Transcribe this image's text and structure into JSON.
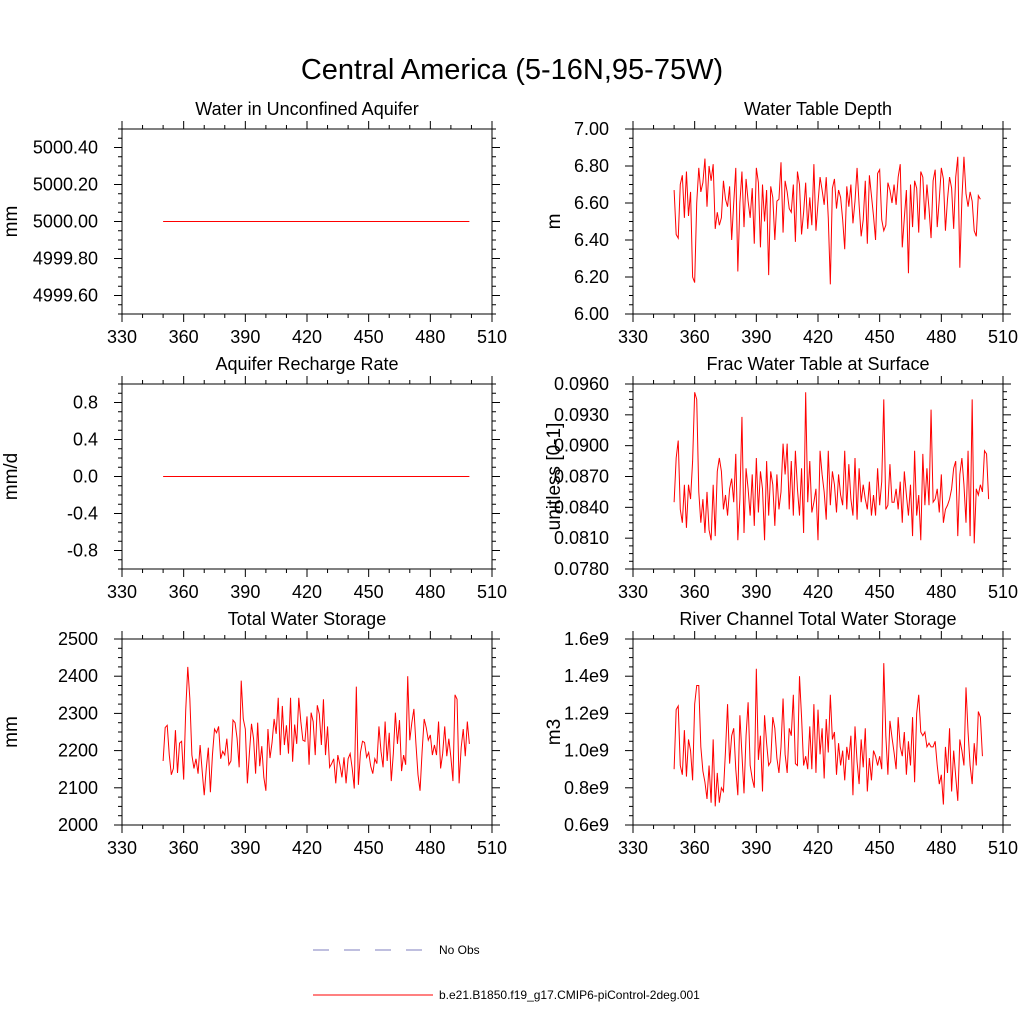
{
  "figure": {
    "title": "Central America (5-16N,95-75W)"
  },
  "legend": {
    "entries": [
      {
        "label": "No Obs",
        "color": "#7f7fbf",
        "dash": true
      },
      {
        "label": "b.e21.B1850.f19_g17.CMIP6-piControl-2deg.001",
        "color": "#ff0000",
        "dash": false
      }
    ]
  },
  "chart_data": [
    {
      "type": "line",
      "title": "Water in Unconfined Aquifer",
      "xlabel": "",
      "ylabel": "mm",
      "xlim": [
        330,
        510
      ],
      "xticks": [
        "330",
        "360",
        "390",
        "420",
        "450",
        "480",
        "510"
      ],
      "ylim": [
        4999.5,
        5000.5
      ],
      "yticks": [
        "4999.60",
        "4999.80",
        "5000.00",
        "5000.20",
        "5000.40"
      ],
      "ytick_values": [
        4999.6,
        4999.8,
        5000.0,
        5000.2,
        5000.4
      ],
      "series": [
        {
          "name": "b.e21.B1850.f19_g17.CMIP6-piControl-2deg.001",
          "color": "#ff0000",
          "x_start": 350,
          "x_end": 499,
          "constant": 5000.0
        }
      ]
    },
    {
      "type": "line",
      "title": "Water Table Depth",
      "xlabel": "",
      "ylabel": "m",
      "xlim": [
        330,
        510
      ],
      "xticks": [
        "330",
        "360",
        "390",
        "420",
        "450",
        "480",
        "510"
      ],
      "ylim": [
        6.0,
        7.0
      ],
      "yticks": [
        "6.00",
        "6.20",
        "6.40",
        "6.60",
        "6.80",
        "7.00"
      ],
      "ytick_values": [
        6.0,
        6.2,
        6.4,
        6.6,
        6.8,
        7.0
      ],
      "series": [
        {
          "name": "b.e21.B1850.f19_g17.CMIP6-piControl-2deg.001",
          "color": "#ff0000",
          "x_start": 350,
          "values": [
            6.67,
            6.43,
            6.41,
            6.7,
            6.75,
            6.52,
            6.77,
            6.53,
            6.66,
            6.2,
            6.17,
            6.6,
            6.79,
            6.66,
            6.71,
            6.84,
            6.58,
            6.8,
            6.72,
            6.81,
            6.46,
            6.55,
            6.48,
            6.52,
            6.72,
            6.62,
            6.58,
            6.69,
            6.4,
            6.6,
            6.79,
            6.23,
            6.6,
            6.77,
            6.47,
            6.73,
            6.61,
            6.52,
            6.68,
            6.38,
            6.79,
            6.71,
            6.36,
            6.7,
            6.5,
            6.67,
            6.21,
            6.69,
            6.63,
            6.4,
            6.61,
            6.62,
            6.82,
            6.44,
            6.72,
            6.66,
            6.57,
            6.55,
            6.7,
            6.39,
            6.77,
            6.7,
            6.43,
            6.55,
            6.71,
            6.46,
            6.63,
            6.48,
            6.81,
            6.45,
            6.6,
            6.74,
            6.67,
            6.59,
            6.74,
            6.52,
            6.16,
            6.68,
            6.73,
            6.57,
            6.67,
            6.63,
            6.51,
            6.35,
            6.69,
            6.58,
            6.7,
            6.49,
            6.61,
            6.79,
            6.59,
            6.42,
            6.51,
            6.72,
            6.38,
            6.75,
            6.64,
            6.53,
            6.4,
            6.76,
            6.78,
            6.51,
            6.45,
            6.48,
            6.71,
            6.67,
            6.6,
            6.7,
            6.59,
            6.74,
            6.81,
            6.36,
            6.52,
            6.67,
            6.22,
            6.7,
            6.47,
            6.72,
            6.68,
            6.44,
            6.77,
            6.74,
            6.51,
            6.7,
            6.57,
            6.41,
            6.72,
            6.78,
            6.47,
            6.62,
            6.79,
            6.73,
            6.45,
            6.62,
            6.74,
            6.68,
            6.46,
            6.74,
            6.85,
            6.25,
            6.62,
            6.85,
            6.65,
            6.58,
            6.66,
            6.61,
            6.45,
            6.42,
            6.64,
            6.62
          ]
        }
      ]
    },
    {
      "type": "line",
      "title": "Aquifer Recharge Rate",
      "xlabel": "",
      "ylabel": "mm/d",
      "xlim": [
        330,
        510
      ],
      "xticks": [
        "330",
        "360",
        "390",
        "420",
        "450",
        "480",
        "510"
      ],
      "ylim": [
        -1.0,
        1.0
      ],
      "yticks": [
        "-0.8",
        "-0.4",
        "0.0",
        "0.4",
        "0.8"
      ],
      "ytick_values": [
        -0.8,
        -0.4,
        0.0,
        0.4,
        0.8
      ],
      "series": [
        {
          "name": "b.e21.B1850.f19_g17.CMIP6-piControl-2deg.001",
          "color": "#ff0000",
          "x_start": 350,
          "x_end": 499,
          "constant": 0.0
        }
      ]
    },
    {
      "type": "line",
      "title": "Frac Water Table at Surface",
      "xlabel": "",
      "ylabel": "unitless [0-1]",
      "xlim": [
        330,
        510
      ],
      "xticks": [
        "330",
        "360",
        "390",
        "420",
        "450",
        "480",
        "510"
      ],
      "ylim": [
        0.078,
        0.096
      ],
      "yticks": [
        "0.0780",
        "0.0810",
        "0.0840",
        "0.0870",
        "0.0900",
        "0.0930",
        "0.0960"
      ],
      "ytick_values": [
        0.078,
        0.081,
        0.084,
        0.087,
        0.09,
        0.093,
        0.096
      ],
      "series": [
        {
          "name": "b.e21.B1850.f19_g17.CMIP6-piControl-2deg.001",
          "color": "#ff0000",
          "x_start": 350,
          "values": [
            0.0845,
            0.0888,
            0.0905,
            0.0838,
            0.0825,
            0.0862,
            0.082,
            0.0862,
            0.0848,
            0.0885,
            0.0952,
            0.0945,
            0.0855,
            0.0825,
            0.0848,
            0.0815,
            0.0855,
            0.0818,
            0.0808,
            0.0862,
            0.0812,
            0.0875,
            0.0888,
            0.0875,
            0.0838,
            0.0852,
            0.0832,
            0.0858,
            0.0868,
            0.0845,
            0.0892,
            0.0808,
            0.0848,
            0.0928,
            0.0815,
            0.0878,
            0.0858,
            0.0832,
            0.0872,
            0.0822,
            0.0888,
            0.0835,
            0.0875,
            0.0858,
            0.0808,
            0.0885,
            0.0832,
            0.0875,
            0.0862,
            0.0822,
            0.0872,
            0.0838,
            0.0855,
            0.0902,
            0.0872,
            0.0902,
            0.0838,
            0.0885,
            0.0832,
            0.0895,
            0.0858,
            0.0832,
            0.0878,
            0.0815,
            0.0952,
            0.0845,
            0.0885,
            0.0835,
            0.0845,
            0.0858,
            0.0808,
            0.0895,
            0.0872,
            0.0855,
            0.0828,
            0.0895,
            0.0842,
            0.0875,
            0.0862,
            0.0835,
            0.0872,
            0.0852,
            0.0842,
            0.0895,
            0.0838,
            0.0882,
            0.0848,
            0.0832,
            0.0888,
            0.0828,
            0.0878,
            0.0845,
            0.0862,
            0.0848,
            0.0838,
            0.0865,
            0.0832,
            0.0852,
            0.0832,
            0.0878,
            0.0842,
            0.0865,
            0.0945,
            0.0838,
            0.0842,
            0.0882,
            0.0845,
            0.0845,
            0.0858,
            0.0838,
            0.0865,
            0.0825,
            0.0875,
            0.0852,
            0.0832,
            0.0862,
            0.0812,
            0.0895,
            0.0832,
            0.0852,
            0.0808,
            0.0892,
            0.0842,
            0.0878,
            0.0842,
            0.0935,
            0.0845,
            0.0848,
            0.0858,
            0.0835,
            0.0872,
            0.0825,
            0.0838,
            0.0842,
            0.0848,
            0.0858,
            0.0878,
            0.0885,
            0.0812,
            0.0872,
            0.0888,
            0.0862,
            0.0825,
            0.0895,
            0.0812,
            0.0945,
            0.0805,
            0.0858,
            0.0852,
            0.0862,
            0.0855,
            0.0895,
            0.0892,
            0.0848
          ]
        }
      ]
    },
    {
      "type": "line",
      "title": "Total Water Storage",
      "xlabel": "",
      "ylabel": "mm",
      "xlim": [
        330,
        510
      ],
      "xticks": [
        "330",
        "360",
        "390",
        "420",
        "450",
        "480",
        "510"
      ],
      "ylim": [
        2000,
        2500
      ],
      "yticks": [
        "2000",
        "2100",
        "2200",
        "2300",
        "2400",
        "2500"
      ],
      "ytick_values": [
        2000,
        2100,
        2200,
        2300,
        2400,
        2500
      ],
      "series": [
        {
          "name": "b.e21.B1850.f19_g17.CMIP6-piControl-2deg.001",
          "color": "#ff0000",
          "x_start": 350,
          "values": [
            2172,
            2262,
            2268,
            2188,
            2135,
            2152,
            2255,
            2140,
            2220,
            2225,
            2122,
            2308,
            2425,
            2340,
            2188,
            2152,
            2178,
            2138,
            2215,
            2145,
            2080,
            2152,
            2208,
            2088,
            2188,
            2258,
            2248,
            2265,
            2178,
            2198,
            2188,
            2232,
            2162,
            2172,
            2282,
            2275,
            2232,
            2155,
            2388,
            2285,
            2258,
            2112,
            2195,
            2272,
            2232,
            2138,
            2275,
            2158,
            2212,
            2128,
            2092,
            2258,
            2180,
            2222,
            2285,
            2245,
            2342,
            2188,
            2320,
            2215,
            2268,
            2192,
            2342,
            2170,
            2270,
            2218,
            2342,
            2278,
            2228,
            2225,
            2292,
            2162,
            2302,
            2278,
            2188,
            2322,
            2298,
            2215,
            2338,
            2188,
            2265,
            2155,
            2165,
            2178,
            2112,
            2188,
            2162,
            2128,
            2182,
            2112,
            2178,
            2192,
            2152,
            2098,
            2372,
            2108,
            2195,
            2225,
            2222,
            2182,
            2195,
            2158,
            2138,
            2178,
            2165,
            2265,
            2198,
            2155,
            2278,
            2172,
            2248,
            2118,
            2192,
            2302,
            2218,
            2282,
            2145,
            2188,
            2162,
            2400,
            2228,
            2275,
            2312,
            2218,
            2135,
            2092,
            2198,
            2285,
            2262,
            2228,
            2242,
            2188,
            2215,
            2188,
            2278,
            2152,
            2192,
            2265,
            2185,
            2232,
            2182,
            2118,
            2350,
            2338,
            2112,
            2208,
            2258,
            2185,
            2278,
            2218
          ]
        }
      ]
    },
    {
      "type": "line",
      "title": "River Channel Total Water Storage",
      "xlabel": "",
      "ylabel": "m3",
      "xlim": [
        330,
        510
      ],
      "xticks": [
        "330",
        "360",
        "390",
        "420",
        "450",
        "480",
        "510"
      ],
      "ylim": [
        600000000.0,
        1600000000.0
      ],
      "yticks": [
        "0.6e9",
        "0.8e9",
        "1.0e9",
        "1.2e9",
        "1.4e9",
        "1.6e9"
      ],
      "ytick_values": [
        600000000.0,
        800000000.0,
        1000000000.0,
        1200000000.0,
        1400000000.0,
        1600000000.0
      ],
      "series": [
        {
          "name": "b.e21.B1850.f19_g17.CMIP6-piControl-2deg.001",
          "color": "#ff0000",
          "x_start": 350,
          "values": [
            900000000.0,
            1220000000.0,
            1240000000.0,
            920000000.0,
            870000000.0,
            1110000000.0,
            860000000.0,
            1060000000.0,
            1000000000.0,
            840000000.0,
            1250000000.0,
            1350000000.0,
            1350000000.0,
            1020000000.0,
            890000000.0,
            830000000.0,
            740000000.0,
            920000000.0,
            720000000.0,
            1060000000.0,
            700000000.0,
            880000000.0,
            720000000.0,
            800000000.0,
            780000000.0,
            1000000000.0,
            1250000000.0,
            930000000.0,
            1080000000.0,
            1120000000.0,
            900000000.0,
            760000000.0,
            1190000000.0,
            980000000.0,
            770000000.0,
            1080000000.0,
            1260000000.0,
            920000000.0,
            850000000.0,
            800000000.0,
            1440000000.0,
            950000000.0,
            1080000000.0,
            780000000.0,
            1190000000.0,
            1040000000.0,
            920000000.0,
            940000000.0,
            1180000000.0,
            1120000000.0,
            960000000.0,
            880000000.0,
            1020000000.0,
            1280000000.0,
            980000000.0,
            880000000.0,
            1120000000.0,
            1080000000.0,
            1300000000.0,
            930000000.0,
            920000000.0,
            1400000000.0,
            1180000000.0,
            920000000.0,
            970000000.0,
            900000000.0,
            1130000000.0,
            900000000.0,
            1250000000.0,
            880000000.0,
            1220000000.0,
            980000000.0,
            1120000000.0,
            850000000.0,
            1170000000.0,
            990000000.0,
            1300000000.0,
            1060000000.0,
            1100000000.0,
            870000000.0,
            1040000000.0,
            920000000.0,
            1000000000.0,
            840000000.0,
            1020000000.0,
            950000000.0,
            1080000000.0,
            760000000.0,
            1130000000.0,
            940000000.0,
            820000000.0,
            1060000000.0,
            910000000.0,
            1120000000.0,
            780000000.0,
            960000000.0,
            840000000.0,
            1000000000.0,
            970000000.0,
            920000000.0,
            970000000.0,
            900000000.0,
            1470000000.0,
            1080000000.0,
            870000000.0,
            1160000000.0,
            1070000000.0,
            990000000.0,
            900000000.0,
            1180000000.0,
            1020000000.0,
            970000000.0,
            1100000000.0,
            870000000.0,
            1050000000.0,
            920000000.0,
            1180000000.0,
            830000000.0,
            1200000000.0,
            1300000000.0,
            1100000000.0,
            1080000000.0,
            1100000000.0,
            1020000000.0,
            1040000000.0,
            1020000000.0,
            1020000000.0,
            1050000000.0,
            920000000.0,
            820000000.0,
            870000000.0,
            710000000.0,
            1020000000.0,
            880000000.0,
            1120000000.0,
            780000000.0,
            1000000000.0,
            860000000.0,
            730000000.0,
            1060000000.0,
            1000000000.0,
            920000000.0,
            1340000000.0,
            1100000000.0,
            920000000.0,
            820000000.0,
            1040000000.0,
            920000000.0,
            1210000000.0,
            1180000000.0,
            970000000.0
          ]
        }
      ]
    }
  ]
}
